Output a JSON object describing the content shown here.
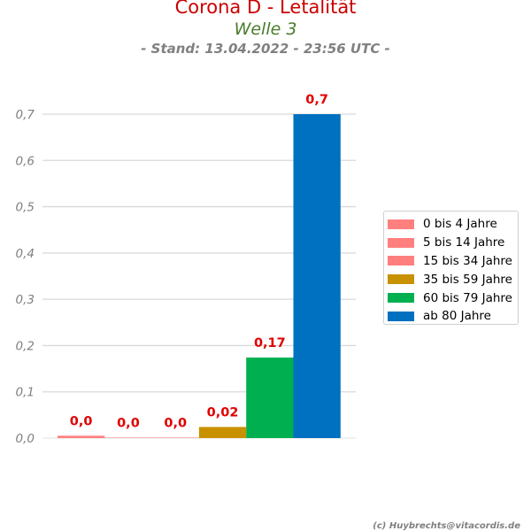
{
  "header": {
    "title": "Corona D - Letalität",
    "subtitle": "Welle 3",
    "stand": "- Stand: 13.04.2022 - 23:56 UTC -"
  },
  "footer": {
    "credit": "(c) Huybrechts@vitacordis.de"
  },
  "chart_data": {
    "type": "bar",
    "title": "Corona D - Letalität",
    "xlabel": "",
    "ylabel": "",
    "ylim": [
      0,
      0.7
    ],
    "grid": true,
    "legend_position": "right",
    "y_ticks": [
      "0,0",
      "0,1",
      "0,2",
      "0,3",
      "0,4",
      "0,5",
      "0,6",
      "0,7"
    ],
    "y_tick_values": [
      0,
      0.1,
      0.2,
      0.3,
      0.4,
      0.5,
      0.6,
      0.7
    ],
    "series": [
      {
        "name": "0 bis 4 Jahre",
        "value": 0.005,
        "label": "0,0",
        "color": "#ff7f7f"
      },
      {
        "name": "5 bis 14 Jahre",
        "value": 0.001,
        "label": "0,0",
        "color": "#ff7f7f"
      },
      {
        "name": "15 bis 34 Jahre",
        "value": 0.001,
        "label": "0,0",
        "color": "#ff7f7f"
      },
      {
        "name": "35 bis 59 Jahre",
        "value": 0.024,
        "label": "0,02",
        "color": "#c89100"
      },
      {
        "name": "60 bis 79 Jahre",
        "value": 0.174,
        "label": "0,17",
        "color": "#00b050"
      },
      {
        "name": "ab 80 Jahre",
        "value": 0.7,
        "label": "0,7",
        "color": "#0070c0"
      }
    ]
  },
  "colors": {
    "title": "#cc0000",
    "subtitle": "#4a7c2a",
    "value_label": "#e00000",
    "tick": "#808080",
    "grid": "#d9d9d9"
  }
}
